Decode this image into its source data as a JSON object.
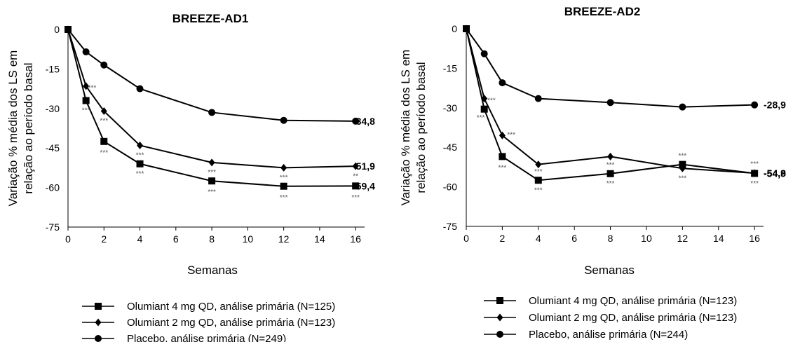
{
  "chart_data": [
    {
      "type": "line",
      "title": "BREEZE-AD1",
      "ylabel_lines": [
        "Variação % média dos LS em",
        "relação ao período basal"
      ],
      "xlabel": "Semanas",
      "x_ticks": [
        0,
        2,
        4,
        6,
        8,
        10,
        12,
        14,
        16
      ],
      "y_ticks": [
        0,
        -15,
        -30,
        -45,
        -60,
        -75
      ],
      "xlim": [
        0,
        16.5
      ],
      "ylim": [
        -75,
        0
      ],
      "series": [
        {
          "name": "Olumiant 4 mg QD, análise primária (N=125)",
          "marker": "square",
          "x": [
            0,
            1,
            2,
            4,
            8,
            12,
            16
          ],
          "y": [
            0,
            -27,
            -42.5,
            -51,
            -57.5,
            -59.5,
            -59.4
          ],
          "end_label": "-59,4"
        },
        {
          "name": "Olumiant 2 mg QD, análise primária (N=123)",
          "marker": "diamond",
          "x": [
            0,
            1,
            2,
            4,
            8,
            12,
            16
          ],
          "y": [
            0,
            -21.5,
            -31,
            -44,
            -50.5,
            -52.5,
            -51.9
          ],
          "end_label": "-51,9"
        },
        {
          "name": "Placebo, análise primária (N=249)",
          "marker": "circle",
          "x": [
            0,
            1,
            2,
            4,
            8,
            12,
            16
          ],
          "y": [
            0,
            -8.5,
            -13.5,
            -22.5,
            -31.5,
            -34.5,
            -34.8
          ],
          "end_label": "-34,8"
        }
      ],
      "annotations": [
        {
          "x": 1,
          "y": -30.5,
          "text": "***"
        },
        {
          "x": 1.35,
          "y": -22,
          "text": "***"
        },
        {
          "x": 2,
          "y": -34.5,
          "text": "***"
        },
        {
          "x": 2,
          "y": -46.5,
          "text": "***"
        },
        {
          "x": 4,
          "y": -47.5,
          "text": "***"
        },
        {
          "x": 4,
          "y": -54.5,
          "text": "***"
        },
        {
          "x": 8,
          "y": -54,
          "text": "***"
        },
        {
          "x": 8,
          "y": -61.5,
          "text": "***"
        },
        {
          "x": 12,
          "y": -56,
          "text": "***"
        },
        {
          "x": 12,
          "y": -63.5,
          "text": "***"
        },
        {
          "x": 16,
          "y": -55.5,
          "text": "**"
        },
        {
          "x": 16,
          "y": -63.5,
          "text": "***"
        }
      ]
    },
    {
      "type": "line",
      "title": "BREEZE-AD2",
      "ylabel_lines": [
        "Variação % média dos LS em",
        "relação ao período basal"
      ],
      "xlabel": "Semanas",
      "x_ticks": [
        0,
        2,
        4,
        6,
        8,
        10,
        12,
        14,
        16
      ],
      "y_ticks": [
        0,
        -15,
        -30,
        -45,
        -60,
        -75
      ],
      "xlim": [
        0,
        16.5
      ],
      "ylim": [
        -75,
        0
      ],
      "series": [
        {
          "name": "Olumiant 4 mg QD, análise primária (N=123)",
          "marker": "square",
          "x": [
            0,
            1,
            2,
            4,
            8,
            12,
            16
          ],
          "y": [
            0,
            -30.5,
            -48.5,
            -57.5,
            -55,
            -51.5,
            -54.9
          ],
          "end_label": "-54,9"
        },
        {
          "name": "Olumiant 2 mg QD, análise primária (N=123)",
          "marker": "diamond",
          "x": [
            0,
            1,
            2,
            4,
            8,
            12,
            16
          ],
          "y": [
            0,
            -26.5,
            -40.5,
            -51.5,
            -48.5,
            -53,
            -54.8
          ],
          "end_label": "-54,8"
        },
        {
          "name": "Placebo, análise primária (N=244)",
          "marker": "circle",
          "x": [
            0,
            1,
            2,
            4,
            8,
            12,
            16
          ],
          "y": [
            0,
            -9.5,
            -20.5,
            -26.5,
            -28,
            -29.7,
            -28.9
          ],
          "end_label": "-28,9"
        }
      ],
      "annotations": [
        {
          "x": 0.8,
          "y": -33.5,
          "text": "***"
        },
        {
          "x": 1.4,
          "y": -27,
          "text": "***"
        },
        {
          "x": 2,
          "y": -52.5,
          "text": "***"
        },
        {
          "x": 2.5,
          "y": -40,
          "text": "***"
        },
        {
          "x": 4,
          "y": -54,
          "text": "***"
        },
        {
          "x": 4,
          "y": -61,
          "text": "***"
        },
        {
          "x": 8,
          "y": -51.5,
          "text": "***"
        },
        {
          "x": 8,
          "y": -58.5,
          "text": "***"
        },
        {
          "x": 12,
          "y": -48,
          "text": "***"
        },
        {
          "x": 12,
          "y": -56.5,
          "text": "***"
        },
        {
          "x": 16,
          "y": -51,
          "text": "***"
        },
        {
          "x": 16,
          "y": -58.5,
          "text": "***"
        }
      ]
    }
  ]
}
